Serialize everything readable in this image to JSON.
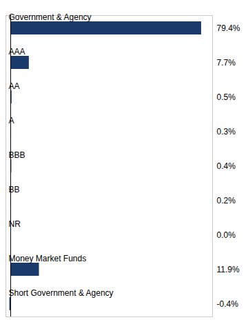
{
  "chart_data": {
    "type": "bar",
    "orientation": "horizontal",
    "categories": [
      "Government & Agency",
      "AAA",
      "AA",
      "A",
      "BBB",
      "BB",
      "NR",
      "Money Market Funds",
      "Short Government & Agency"
    ],
    "values": [
      79.4,
      7.7,
      0.5,
      0.3,
      0.4,
      0.2,
      0.0,
      11.9,
      -0.4
    ],
    "value_labels": [
      "79.4%",
      "7.7%",
      "0.5%",
      "0.3%",
      "0.4%",
      "0.2%",
      "0.0%",
      "11.9%",
      "-0.4%"
    ],
    "color": "#1a3a6b",
    "xlim": [
      -2,
      84
    ],
    "data_labels": true,
    "tick_labels": false,
    "grid": false
  }
}
